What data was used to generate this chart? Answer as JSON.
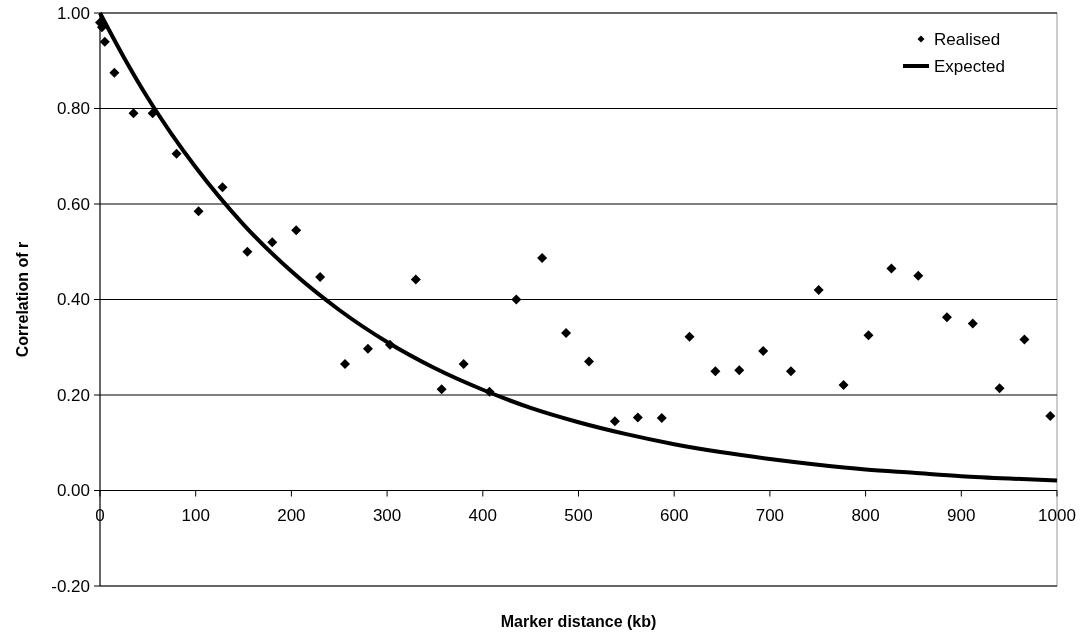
{
  "chart_data": {
    "type": "scatter",
    "xlabel": "Marker distance (kb)",
    "ylabel": "Correlation of r",
    "xlim": [
      0,
      1000
    ],
    "xticks": [
      0,
      100,
      200,
      300,
      400,
      500,
      600,
      700,
      800,
      900,
      1000
    ],
    "ylim": [
      -0.2,
      1
    ],
    "yticks": [
      {
        "value": -0.2,
        "label": "-0.20"
      },
      {
        "value": 0,
        "label": "0.00"
      },
      {
        "value": 0.2,
        "label": "0.20"
      },
      {
        "value": 0.4,
        "label": "0.40"
      },
      {
        "value": 0.6,
        "label": "0.60"
      },
      {
        "value": 0.8,
        "label": "0.80"
      },
      {
        "value": 1,
        "label": "1.00"
      }
    ],
    "grid": "y",
    "legend": "top right",
    "series": [
      {
        "name": "Realised",
        "marker": "diamond",
        "color": "#000000",
        "x": [
          0,
          2,
          5,
          15,
          35,
          55,
          80,
          103,
          128,
          154,
          180,
          205,
          230,
          256,
          280,
          303,
          330,
          357,
          380,
          407,
          435,
          462,
          487,
          511,
          538,
          562,
          587,
          616,
          643,
          668,
          693,
          722,
          751,
          777,
          803,
          827,
          855,
          885,
          912,
          940,
          966,
          993
        ],
        "values": [
          0.98,
          0.97,
          0.94,
          0.875,
          0.79,
          0.79,
          0.705,
          0.585,
          0.635,
          0.5,
          0.52,
          0.545,
          0.447,
          0.265,
          0.297,
          0.305,
          0.442,
          0.212,
          0.265,
          0.207,
          0.4,
          0.487,
          0.33,
          0.27,
          0.145,
          0.153,
          0.152,
          0.322,
          0.25,
          0.252,
          0.292,
          0.25,
          0.42,
          0.221,
          0.325,
          0.465,
          0.45,
          0.363,
          0.35,
          0.214,
          0.316,
          0.156
        ]
      },
      {
        "name": "Expected",
        "type": "line",
        "marker": "none",
        "color": "#000000",
        "line_style": "solid",
        "x": [
          0,
          25,
          50,
          75,
          100,
          150,
          200,
          250,
          300,
          350,
          400,
          450,
          500,
          550,
          600,
          650,
          700,
          750,
          800,
          850,
          900,
          950,
          1000
        ],
        "values": [
          1,
          0.907,
          0.822,
          0.746,
          0.677,
          0.557,
          0.459,
          0.378,
          0.311,
          0.256,
          0.211,
          0.173,
          0.143,
          0.118,
          0.097,
          0.08,
          0.066,
          0.054,
          0.044,
          0.037,
          0.03,
          0.025,
          0.021
        ]
      }
    ]
  }
}
